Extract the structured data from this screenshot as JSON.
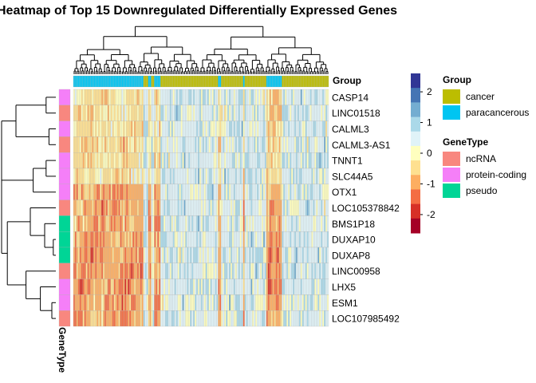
{
  "chart_data": {
    "type": "heatmap",
    "title": "Heatmap of Top 15 Downregulated Differentially Expressed Genes",
    "rows": [
      {
        "gene": "CASP14",
        "type": "protein-coding"
      },
      {
        "gene": "LINC01518",
        "type": "ncRNA"
      },
      {
        "gene": "CALML3",
        "type": "protein-coding"
      },
      {
        "gene": "CALML3-AS1",
        "type": "ncRNA"
      },
      {
        "gene": "TNNT1",
        "type": "protein-coding"
      },
      {
        "gene": "SLC44A5",
        "type": "protein-coding"
      },
      {
        "gene": "OTX1",
        "type": "protein-coding"
      },
      {
        "gene": "LOC105378842",
        "type": "ncRNA"
      },
      {
        "gene": "BMS1P18",
        "type": "pseudo"
      },
      {
        "gene": "DUXAP10",
        "type": "pseudo"
      },
      {
        "gene": "DUXAP8",
        "type": "pseudo"
      },
      {
        "gene": "LINC00958",
        "type": "ncRNA"
      },
      {
        "gene": "LHX5",
        "type": "protein-coding"
      },
      {
        "gene": "ESM1",
        "type": "protein-coding"
      },
      {
        "gene": "LOC107985492",
        "type": "ncRNA"
      }
    ],
    "column_groups": [
      "paracancerous",
      "paracancerous",
      "paracancerous",
      "paracancerous",
      "paracancerous",
      "paracancerous",
      "paracancerous",
      "paracancerous",
      "paracancerous",
      "paracancerous",
      "paracancerous",
      "paracancerous",
      "paracancerous",
      "paracancerous",
      "paracancerous",
      "paracancerous",
      "paracancerous",
      "paracancerous",
      "paracancerous",
      "paracancerous",
      "paracancerous",
      "paracancerous",
      "paracancerous",
      "paracancerous",
      "paracancerous",
      "paracancerous",
      "paracancerous",
      "paracancerous",
      "paracancerous",
      "paracancerous",
      "paracancerous",
      "paracancerous",
      "paracancerous",
      "paracancerous",
      "paracancerous",
      "paracancerous",
      "paracancerous",
      "paracancerous",
      "paracancerous",
      "paracancerous",
      "paracancerous",
      "paracancerous",
      "paracancerous",
      "paracancerous",
      "paracancerous",
      "cancer",
      "cancer",
      "cancer",
      "paracancerous",
      "paracancerous",
      "cancer",
      "cancer",
      "paracancerous",
      "paracancerous",
      "paracancerous",
      "paracancerous",
      "cancer",
      "cancer",
      "cancer",
      "cancer",
      "cancer",
      "cancer",
      "cancer",
      "cancer",
      "cancer",
      "cancer",
      "cancer",
      "cancer",
      "cancer",
      "cancer",
      "cancer",
      "cancer",
      "cancer",
      "cancer",
      "cancer",
      "cancer",
      "cancer",
      "cancer",
      "cancer",
      "cancer",
      "cancer",
      "cancer",
      "cancer",
      "cancer",
      "cancer",
      "cancer",
      "cancer",
      "cancer",
      "cancer",
      "cancer",
      "cancer",
      "cancer",
      "cancer",
      "paracancerous",
      "paracancerous",
      "cancer",
      "cancer",
      "cancer",
      "cancer",
      "cancer",
      "cancer",
      "cancer",
      "cancer",
      "cancer",
      "cancer",
      "cancer",
      "cancer",
      "cancer",
      "cancer",
      "paracancerous",
      "cancer",
      "cancer",
      "cancer",
      "cancer",
      "cancer",
      "cancer",
      "cancer",
      "cancer",
      "cancer",
      "cancer",
      "cancer",
      "cancer",
      "cancer",
      "cancer",
      "paracancerous",
      "paracancerous",
      "paracancerous",
      "paracancerous",
      "paracancerous",
      "paracancerous",
      "paracancerous",
      "paracancerous",
      "paracancerous",
      "paracancerous",
      "cancer",
      "cancer",
      "cancer",
      "cancer",
      "cancer",
      "cancer",
      "cancer",
      "cancer",
      "cancer",
      "cancer",
      "cancer",
      "cancer",
      "cancer",
      "cancer",
      "cancer",
      "cancer",
      "cancer",
      "cancer",
      "cancer",
      "cancer",
      "cancer",
      "cancer",
      "cancer",
      "cancer",
      "cancer",
      "cancer",
      "cancer",
      "cancer",
      "cancer",
      "cancer"
    ],
    "value_range": [
      -2.6,
      2.6
    ],
    "color_scale": {
      "ticks": [
        2,
        1,
        0,
        -1,
        -2
      ],
      "colors": [
        "#313695",
        "#4575b4",
        "#74add1",
        "#abd9e9",
        "#e0f3f8",
        "#ffffbf",
        "#fee090",
        "#fdae61",
        "#f46d43",
        "#d73027",
        "#a50026"
      ]
    },
    "annotation_row_label": "Group",
    "annotation_col_label": "GeneType",
    "legend": {
      "group_title": "Group",
      "group_items": [
        {
          "label": "cancer",
          "color": "#bcbd00"
        },
        {
          "label": "paracancerous",
          "color": "#00c5f2"
        }
      ],
      "genetype_title": "GeneType",
      "genetype_items": [
        {
          "label": "ncRNA",
          "color": "#f8877f"
        },
        {
          "label": "protein-coding",
          "color": "#f57ff8"
        },
        {
          "label": "pseudo",
          "color": "#00d596"
        }
      ]
    }
  }
}
